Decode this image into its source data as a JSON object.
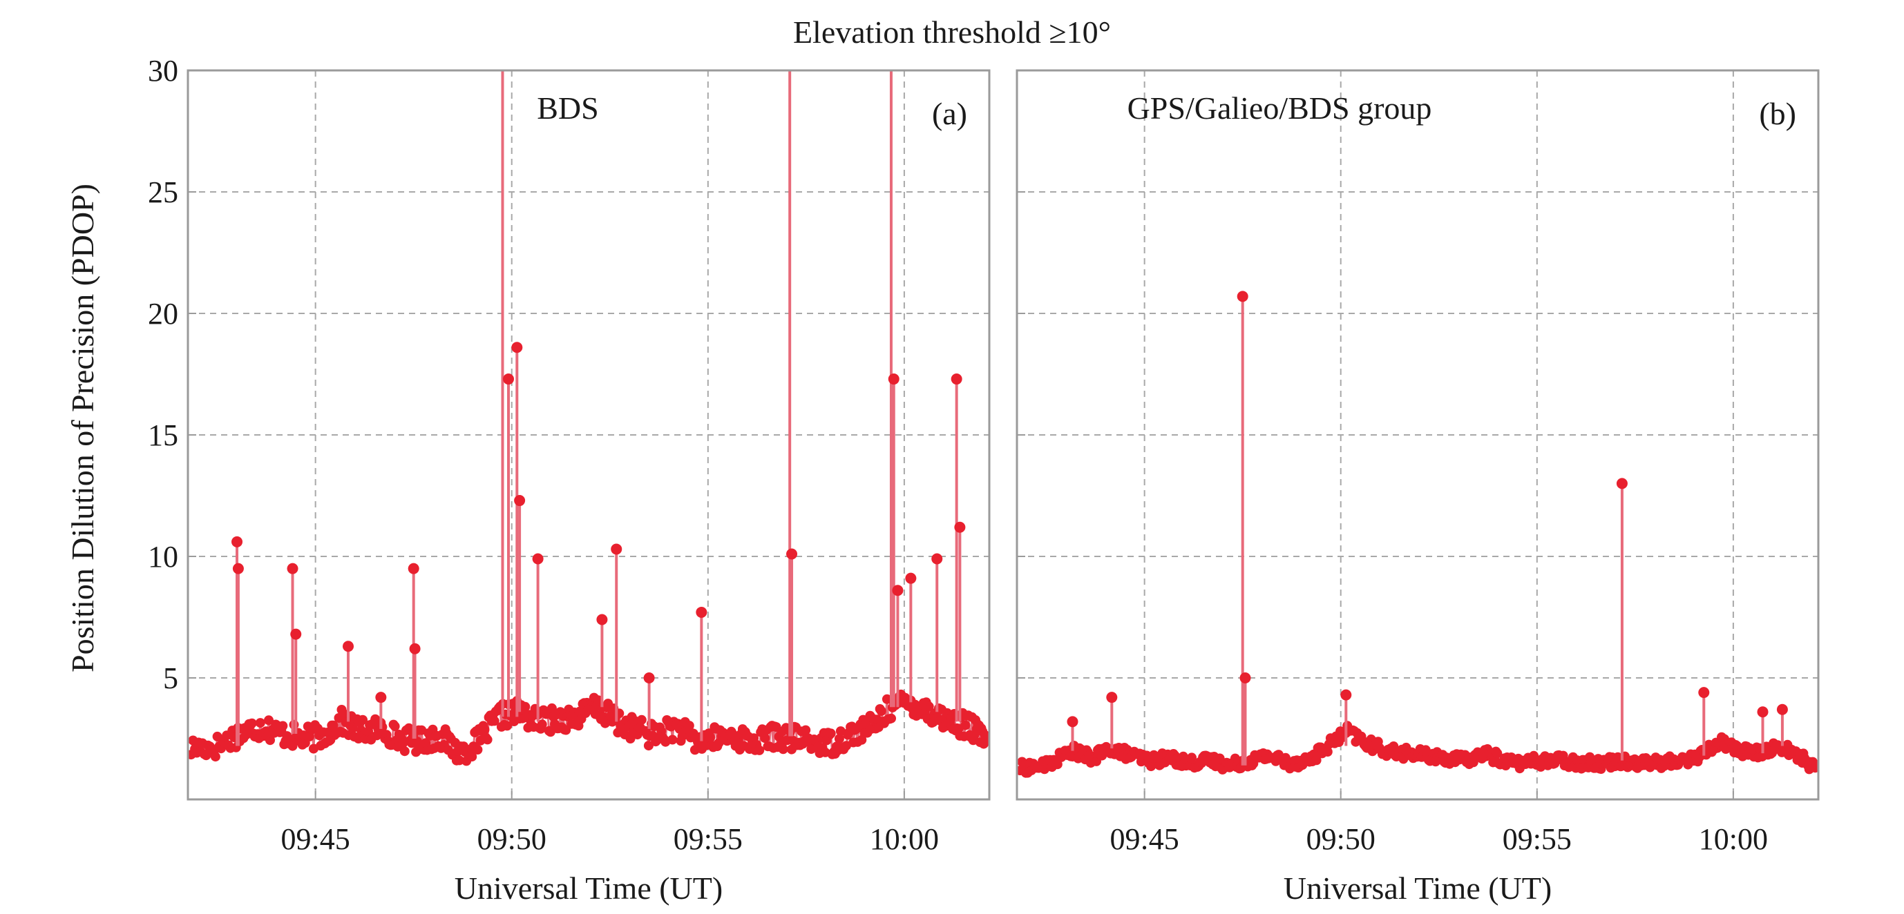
{
  "figure": {
    "title": "Elevation threshold ≥10°",
    "ylabel": "Position Dilution of Precision (PDOP)",
    "color": "#e8202e",
    "stem_color": "#e86a7a"
  },
  "chart_data": [
    {
      "type": "scatter",
      "panel": "(a)",
      "title": "BDS",
      "xlabel": "Universal Time (UT)",
      "ylabel": "Position Dilution of Precision (PDOP)",
      "xlim": [
        "09:41:45",
        "10:02:10"
      ],
      "ylim": [
        0,
        30
      ],
      "x_ticks": [
        "09:45",
        "09:50",
        "09:55",
        "10:00"
      ],
      "y_ticks": [
        "5",
        "10",
        "15",
        "20",
        "25",
        "30"
      ],
      "grid": true,
      "baseline_series": {
        "x": [
          "09:41:50",
          "09:42:30",
          "09:43:10",
          "09:43:40",
          "09:44:10",
          "09:44:40",
          "09:45:10",
          "09:45:40",
          "09:46:10",
          "09:46:40",
          "09:47:10",
          "09:47:40",
          "09:48:10",
          "09:48:40",
          "09:49:10",
          "09:49:40",
          "09:50:10",
          "09:50:40",
          "09:51:10",
          "09:51:40",
          "09:52:10",
          "09:52:40",
          "09:53:10",
          "09:53:40",
          "09:54:10",
          "09:54:40",
          "09:55:10",
          "09:55:40",
          "09:56:10",
          "09:56:40",
          "09:57:10",
          "09:57:40",
          "09:58:10",
          "09:58:40",
          "09:59:10",
          "09:59:40",
          "10:00:10",
          "10:00:40",
          "10:01:10",
          "10:01:40",
          "10:02:05"
        ],
        "y": [
          2.1,
          2.2,
          2.8,
          3.0,
          2.7,
          2.5,
          2.6,
          3.2,
          2.8,
          2.9,
          2.5,
          2.4,
          2.6,
          1.9,
          2.4,
          3.4,
          3.6,
          3.2,
          3.3,
          3.4,
          3.8,
          3.2,
          2.9,
          2.6,
          3.0,
          2.4,
          2.5,
          2.6,
          2.3,
          2.6,
          2.5,
          2.4,
          2.3,
          2.7,
          3.0,
          3.8,
          4.0,
          3.6,
          3.2,
          3.0,
          2.4
        ]
      },
      "spikes": {
        "x": [
          "09:43:00",
          "09:43:02",
          "09:44:25",
          "09:44:30",
          "09:45:50",
          "09:46:40",
          "09:47:30",
          "09:47:32",
          "09:49:46",
          "09:49:55",
          "09:50:08",
          "09:50:12",
          "09:50:40",
          "09:52:18",
          "09:52:40",
          "09:53:30",
          "09:54:50",
          "09:57:05",
          "09:57:08",
          "09:59:40",
          "09:59:44",
          "09:59:50",
          "10:00:10",
          "10:00:50",
          "10:01:20",
          "10:01:25"
        ],
        "y": [
          10.6,
          9.5,
          9.5,
          6.8,
          6.3,
          4.2,
          9.5,
          6.2,
          30.0,
          17.3,
          18.6,
          12.3,
          9.9,
          7.4,
          10.3,
          5.0,
          7.7,
          30.0,
          10.1,
          30.0,
          17.3,
          8.6,
          9.1,
          9.9,
          17.3,
          11.2
        ]
      }
    },
    {
      "type": "scatter",
      "panel": "(b)",
      "title": "GPS/Galieo/BDS group",
      "xlabel": "Universal Time (UT)",
      "ylabel": "",
      "xlim": [
        "09:41:45",
        "10:02:10"
      ],
      "ylim": [
        0,
        30
      ],
      "x_ticks": [
        "09:45",
        "09:50",
        "09:55",
        "10:00"
      ],
      "y_ticks": [],
      "grid": true,
      "baseline_series": {
        "x": [
          "09:41:50",
          "09:42:30",
          "09:43:10",
          "09:43:40",
          "09:44:10",
          "09:44:40",
          "09:45:10",
          "09:45:40",
          "09:46:10",
          "09:46:40",
          "09:47:10",
          "09:47:40",
          "09:48:10",
          "09:48:40",
          "09:49:10",
          "09:49:40",
          "09:50:10",
          "09:50:40",
          "09:51:10",
          "09:51:40",
          "09:52:10",
          "09:52:40",
          "09:53:10",
          "09:53:40",
          "09:54:10",
          "09:54:40",
          "09:55:10",
          "09:55:40",
          "09:56:10",
          "09:56:40",
          "09:57:10",
          "09:57:40",
          "09:58:10",
          "09:58:40",
          "09:59:10",
          "09:59:40",
          "10:00:10",
          "10:00:40",
          "10:01:10",
          "10:01:40",
          "10:02:05"
        ],
        "y": [
          1.3,
          1.4,
          2.0,
          1.7,
          2.1,
          1.8,
          1.6,
          1.7,
          1.5,
          1.6,
          1.4,
          1.6,
          1.8,
          1.5,
          1.6,
          2.2,
          2.8,
          2.3,
          2.0,
          1.9,
          1.8,
          1.7,
          1.6,
          1.9,
          1.6,
          1.5,
          1.6,
          1.6,
          1.5,
          1.5,
          1.6,
          1.5,
          1.5,
          1.6,
          1.8,
          2.4,
          2.0,
          1.9,
          2.2,
          1.8,
          1.3
        ]
      },
      "spikes": {
        "x": [
          "09:43:10",
          "09:44:10",
          "09:47:30",
          "09:47:34",
          "09:50:08",
          "09:57:10",
          "09:59:15",
          "10:00:45",
          "10:01:15"
        ],
        "y": [
          3.2,
          4.2,
          20.7,
          5.0,
          4.3,
          13.0,
          4.4,
          3.6,
          3.7
        ]
      }
    }
  ]
}
